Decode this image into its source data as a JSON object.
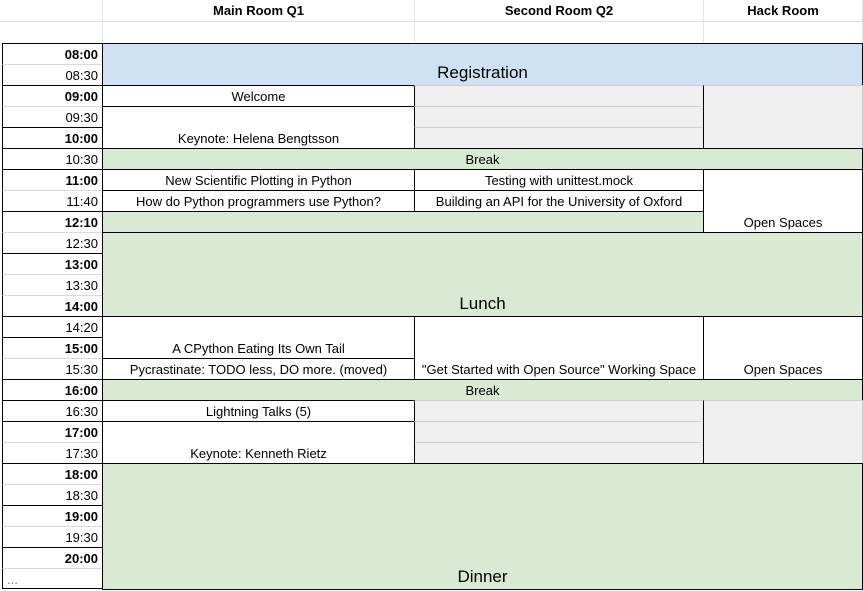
{
  "columns": {
    "main": "Main Room Q1",
    "second": "Second Room Q2",
    "hack": "Hack Room"
  },
  "times": [
    "08:00",
    "08:30",
    "09:00",
    "09:30",
    "10:00",
    "10:30",
    "11:00",
    "11:40",
    "12:10",
    "12:30",
    "13:00",
    "13:30",
    "14:00",
    "14:20",
    "15:00",
    "15:30",
    "16:00",
    "16:30",
    "17:00",
    "17:30",
    "18:00",
    "18:30",
    "19:00",
    "19:30",
    "20:00",
    "..."
  ],
  "colors": {
    "registration": "#cfe2f3",
    "break": "#d9ead3",
    "unused": "#efefef"
  },
  "events": {
    "registration": "Registration",
    "welcome": "Welcome",
    "keynote1": "Keynote: Helena Bengtsson",
    "break1": "Break",
    "plotting": "New Scientific Plotting in Python",
    "mock": "Testing with unittest.mock",
    "howdo": "How do Python programmers use Python?",
    "oxford": "Building an API for the University of Oxford",
    "open1": "Open Spaces",
    "lunch": "Lunch",
    "cpython": "A CPython Eating Its Own Tail",
    "pycrastinate": "Pycrastinate: TODO less, DO more. (moved)",
    "opensource": "\"Get Started with Open Source\" Working Space",
    "open2": "Open Spaces",
    "break2": "Break",
    "lightning": "Lightning Talks (5)",
    "keynote2": "Keynote: Kenneth Rietz",
    "dinner": "Dinner"
  }
}
